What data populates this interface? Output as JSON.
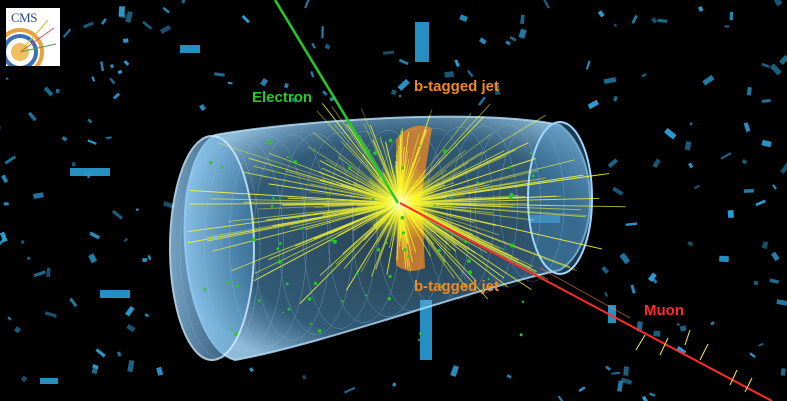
{
  "labels": {
    "electron": "Electron",
    "bjet_top": "b-tagged jet",
    "bjet_bottom": "b-tagged jet",
    "muon": "Muon"
  },
  "logo": {
    "text": "CMS"
  },
  "colors": {
    "background": "#000000",
    "electron": "#22cc22",
    "bjet": "#f08a24",
    "muon": "#ff2a2a",
    "tracks": "#ffff33",
    "detector": "#8fd0ff",
    "calorimeter_towers": "#2a9fd6"
  }
}
